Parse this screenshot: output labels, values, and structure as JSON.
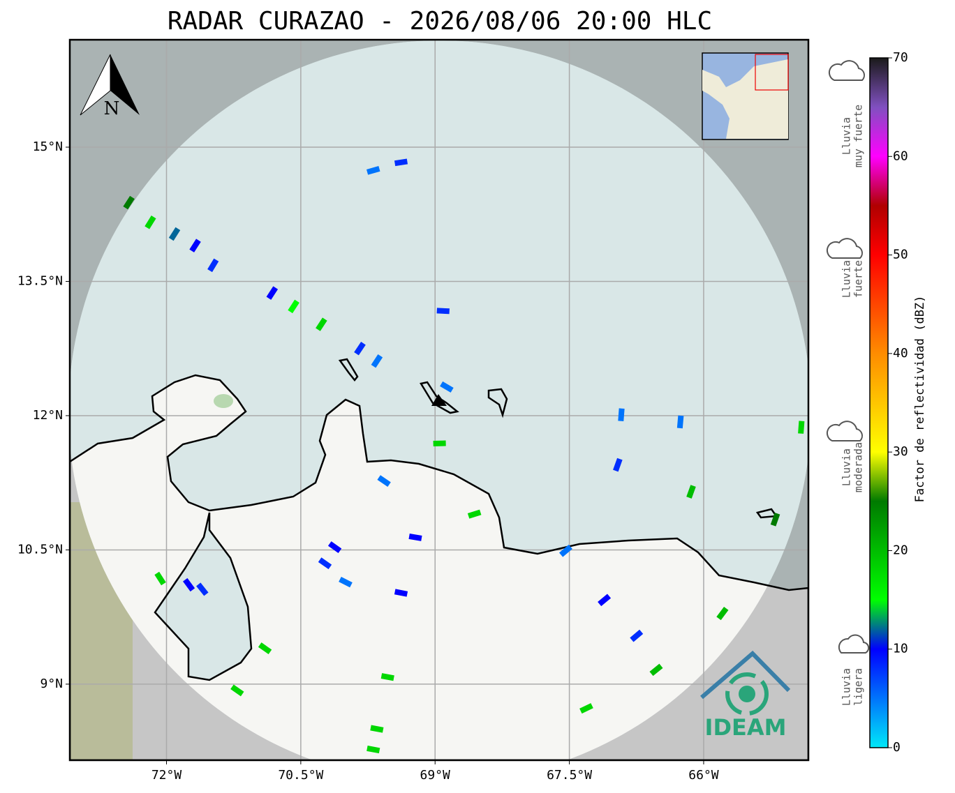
{
  "title": "RADAR CURAZAO - 2026/08/06 20:00 HLC",
  "map": {
    "xlim": [
      -73.08,
      -64.83
    ],
    "ylim": [
      8.15,
      16.2
    ],
    "grid": true,
    "xticks": [
      {
        "value": -72,
        "label": "72°W"
      },
      {
        "value": -70.5,
        "label": "70.5°W"
      },
      {
        "value": -69,
        "label": "69°W"
      },
      {
        "value": -67.5,
        "label": "67.5°W"
      },
      {
        "value": -66,
        "label": "66°W"
      }
    ],
    "yticks": [
      {
        "value": 9,
        "label": "9°N"
      },
      {
        "value": 10.5,
        "label": "10.5°N"
      },
      {
        "value": 12,
        "label": "12°N"
      },
      {
        "value": 13.5,
        "label": "13.5°N"
      },
      {
        "value": 15,
        "label": "15°N"
      }
    ],
    "echoes": [
      {
        "lon": -72.42,
        "lat": 14.38,
        "dbz": 25
      },
      {
        "lon": -72.18,
        "lat": 14.16,
        "dbz": 18
      },
      {
        "lon": -71.91,
        "lat": 14.03,
        "dbz": 12
      },
      {
        "lon": -71.68,
        "lat": 13.9,
        "dbz": 10
      },
      {
        "lon": -71.48,
        "lat": 13.68,
        "dbz": 8
      },
      {
        "lon": -70.82,
        "lat": 13.37,
        "dbz": 10
      },
      {
        "lon": -70.58,
        "lat": 13.22,
        "dbz": 15
      },
      {
        "lon": -70.27,
        "lat": 13.02,
        "dbz": 18
      },
      {
        "lon": -69.84,
        "lat": 12.75,
        "dbz": 8
      },
      {
        "lon": -69.65,
        "lat": 12.61,
        "dbz": 5
      },
      {
        "lon": -69.38,
        "lat": 14.83,
        "dbz": 8
      },
      {
        "lon": -69.69,
        "lat": 14.74,
        "dbz": 5
      },
      {
        "lon": -68.87,
        "lat": 12.32,
        "dbz": 5
      },
      {
        "lon": -68.91,
        "lat": 13.17,
        "dbz": 8
      },
      {
        "lon": -68.95,
        "lat": 11.69,
        "dbz": 18
      },
      {
        "lon": -66.92,
        "lat": 12.01,
        "dbz": 5
      },
      {
        "lon": -66.26,
        "lat": 11.93,
        "dbz": 5
      },
      {
        "lon": -64.91,
        "lat": 11.87,
        "dbz": 18
      },
      {
        "lon": -66.96,
        "lat": 11.45,
        "dbz": 8
      },
      {
        "lon": -66.14,
        "lat": 11.15,
        "dbz": 20
      },
      {
        "lon": -65.2,
        "lat": 10.84,
        "dbz": 25
      },
      {
        "lon": -70.12,
        "lat": 10.53,
        "dbz": 10
      },
      {
        "lon": -70.0,
        "lat": 10.14,
        "dbz": 5
      },
      {
        "lon": -70.23,
        "lat": 10.35,
        "dbz": 8
      },
      {
        "lon": -72.07,
        "lat": 10.18,
        "dbz": 18
      },
      {
        "lon": -71.75,
        "lat": 10.11,
        "dbz": 10
      },
      {
        "lon": -71.6,
        "lat": 10.06,
        "dbz": 8
      },
      {
        "lon": -70.9,
        "lat": 9.4,
        "dbz": 18
      },
      {
        "lon": -71.21,
        "lat": 8.93,
        "dbz": 18
      },
      {
        "lon": -69.69,
        "lat": 8.27,
        "dbz": 18
      },
      {
        "lon": -69.65,
        "lat": 8.5,
        "dbz": 18
      },
      {
        "lon": -69.38,
        "lat": 10.02,
        "dbz": 10
      },
      {
        "lon": -69.53,
        "lat": 9.08,
        "dbz": 18
      },
      {
        "lon": -67.11,
        "lat": 9.94,
        "dbz": 10
      },
      {
        "lon": -66.53,
        "lat": 9.16,
        "dbz": 20
      },
      {
        "lon": -67.31,
        "lat": 8.73,
        "dbz": 18
      },
      {
        "lon": -65.79,
        "lat": 9.79,
        "dbz": 20
      },
      {
        "lon": -66.75,
        "lat": 9.54,
        "dbz": 8
      },
      {
        "lon": -69.57,
        "lat": 11.27,
        "dbz": 5
      },
      {
        "lon": -69.22,
        "lat": 10.64,
        "dbz": 10
      },
      {
        "lon": -68.56,
        "lat": 10.9,
        "dbz": 18
      },
      {
        "lon": -67.54,
        "lat": 10.49,
        "dbz": 5
      }
    ]
  },
  "north": "N",
  "colorbar": {
    "label": "Factor de reflectividad (dBZ)",
    "ylim": [
      0,
      70
    ],
    "yticks": [
      0,
      10,
      20,
      30,
      40,
      50,
      60,
      70
    ],
    "stops": [
      {
        "value": 0,
        "color": "#00e8f8"
      },
      {
        "value": 10,
        "color": "#0000ff"
      },
      {
        "value": 15,
        "color": "#00ff00"
      },
      {
        "value": 25,
        "color": "#007a00"
      },
      {
        "value": 30,
        "color": "#ffff00"
      },
      {
        "value": 40,
        "color": "#ff8c00"
      },
      {
        "value": 50,
        "color": "#ff0000"
      },
      {
        "value": 55,
        "color": "#b00000"
      },
      {
        "value": 60,
        "color": "#ff00ff"
      },
      {
        "value": 65,
        "color": "#8050c0"
      },
      {
        "value": 70,
        "color": "#1a1a1a"
      }
    ]
  },
  "categories": [
    [
      "Lluvia",
      "muy fuerte"
    ],
    [
      "Lluvia",
      "fuerte"
    ],
    [
      "Lluvia",
      "moderada"
    ],
    [
      "Lluvia",
      "ligera"
    ]
  ],
  "logo": "IDEAM"
}
